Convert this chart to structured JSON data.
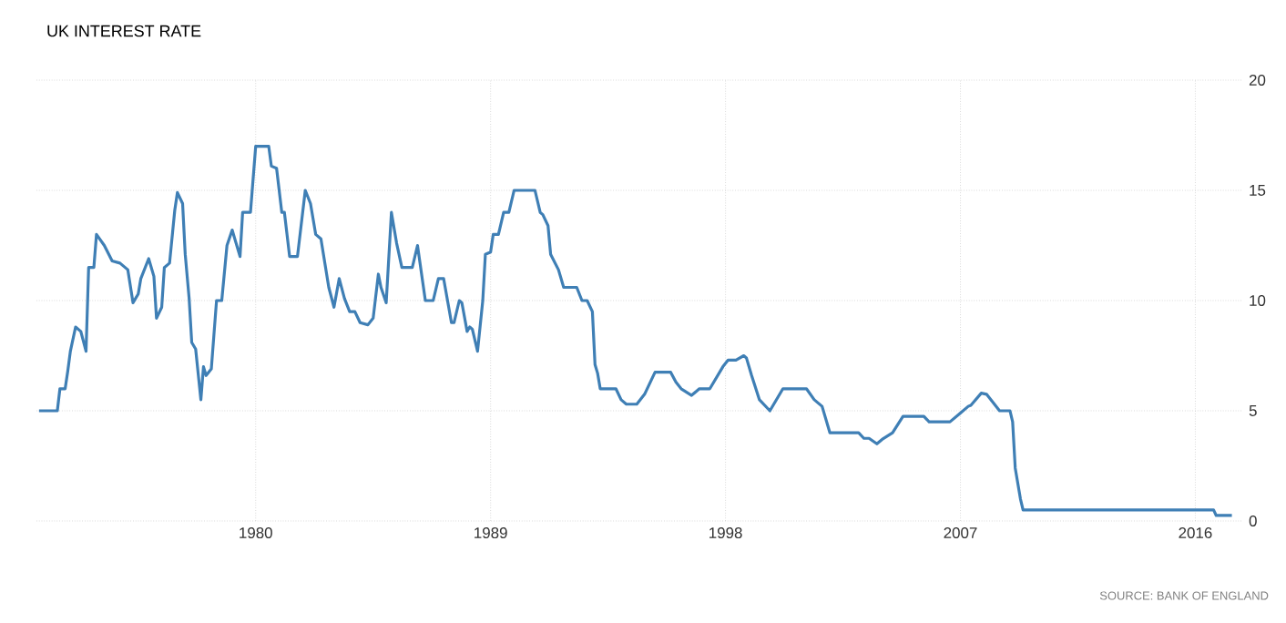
{
  "chart_data": {
    "type": "line",
    "title": "UK INTEREST RATE",
    "annotations": [
      "SOURCE: BANK OF ENGLAND"
    ],
    "x": [
      1971.7,
      1972.4,
      1972.5,
      1972.7,
      1972.8,
      1972.9,
      1973.1,
      1973.3,
      1973.5,
      1973.6,
      1973.8,
      1973.9,
      1974.2,
      1974.5,
      1974.8,
      1975.1,
      1975.3,
      1975.5,
      1975.6,
      1975.9,
      1976.1,
      1976.2,
      1976.4,
      1976.5,
      1976.7,
      1976.9,
      1977.0,
      1977.2,
      1977.3,
      1977.45,
      1977.55,
      1977.7,
      1977.9,
      1978.0,
      1978.1,
      1978.3,
      1978.5,
      1978.7,
      1978.9,
      1979.1,
      1979.4,
      1979.5,
      1979.8,
      1980.0,
      1980.5,
      1980.6,
      1980.8,
      1981.0,
      1981.1,
      1981.3,
      1981.6,
      1981.9,
      1982.1,
      1982.3,
      1982.5,
      1982.8,
      1983.0,
      1983.2,
      1983.4,
      1983.6,
      1983.8,
      1984.0,
      1984.3,
      1984.5,
      1984.7,
      1984.8,
      1985.0,
      1985.2,
      1985.4,
      1985.6,
      1986.0,
      1986.2,
      1986.5,
      1986.8,
      1987.0,
      1987.2,
      1987.5,
      1987.6,
      1987.8,
      1987.9,
      1988.1,
      1988.2,
      1988.3,
      1988.5,
      1988.7,
      1988.8,
      1989.0,
      1989.1,
      1989.3,
      1989.5,
      1989.7,
      1989.9,
      1990.7,
      1990.9,
      1991.0,
      1991.2,
      1991.3,
      1991.6,
      1991.8,
      1992.3,
      1992.5,
      1992.7,
      1992.9,
      1993.0,
      1993.1,
      1993.2,
      1993.8,
      1994.0,
      1994.2,
      1994.6,
      1994.9,
      1995.3,
      1995.9,
      1996.1,
      1996.3,
      1996.7,
      1997.0,
      1997.4,
      1997.9,
      1998.1,
      1998.4,
      1998.7,
      1998.8,
      1999.0,
      1999.3,
      1999.7,
      2000.2,
      2001.1,
      2001.4,
      2001.7,
      2002.0,
      2003.1,
      2003.3,
      2003.5,
      2003.8,
      2004.0,
      2004.4,
      2004.8,
      2005.6,
      2005.8,
      2006.6,
      2007.0,
      2007.3,
      2007.4,
      2007.8,
      2008.0,
      2008.5,
      2008.9,
      2009.0,
      2009.1,
      2009.3,
      2009.4,
      2016.7,
      2016.8,
      2017.4
    ],
    "values": [
      5.0,
      5.0,
      6.0,
      6.0,
      6.8,
      7.7,
      8.8,
      8.6,
      7.7,
      11.5,
      11.5,
      13.0,
      12.5,
      11.8,
      11.7,
      11.4,
      9.9,
      10.3,
      11.0,
      11.9,
      11.1,
      9.2,
      9.7,
      11.5,
      11.7,
      14.1,
      14.9,
      14.4,
      12.1,
      10.1,
      8.1,
      7.8,
      5.5,
      7.0,
      6.6,
      6.9,
      10.0,
      10.0,
      12.5,
      13.2,
      12.0,
      14.0,
      14.0,
      17.0,
      17.0,
      16.1,
      16.0,
      14.0,
      14.0,
      12.0,
      12.0,
      15.0,
      14.4,
      13.0,
      12.8,
      10.6,
      9.7,
      11.0,
      10.1,
      9.5,
      9.5,
      9.0,
      8.9,
      9.2,
      11.2,
      10.6,
      9.9,
      14.0,
      12.6,
      11.5,
      11.5,
      12.5,
      10.0,
      10.0,
      11.0,
      11.0,
      9.0,
      9.0,
      10.0,
      9.9,
      8.6,
      8.8,
      8.7,
      7.7,
      10.0,
      12.1,
      12.2,
      13.0,
      13.0,
      14.0,
      14.0,
      15.0,
      15.0,
      14.0,
      13.9,
      13.4,
      12.1,
      11.4,
      10.6,
      10.6,
      10.0,
      10.0,
      9.5,
      7.1,
      6.7,
      6.0,
      6.0,
      5.5,
      5.3,
      5.3,
      5.75,
      6.75,
      6.75,
      6.3,
      6.0,
      5.7,
      6.0,
      6.0,
      7.0,
      7.3,
      7.3,
      7.5,
      7.4,
      6.6,
      5.5,
      5.0,
      6.0,
      6.0,
      5.5,
      5.2,
      4.0,
      4.0,
      3.75,
      3.75,
      3.5,
      3.7,
      4.0,
      4.75,
      4.75,
      4.5,
      4.5,
      4.9,
      5.2,
      5.25,
      5.8,
      5.75,
      5.0,
      5.0,
      4.5,
      2.4,
      1.0,
      0.5,
      0.5,
      0.25,
      0.25
    ],
    "color": "#3f7fb5",
    "xlim": [
      1971.6,
      2017.8
    ],
    "ylim": [
      0,
      20
    ],
    "xticks": [
      1980,
      1989,
      1998,
      2007,
      2016
    ],
    "yticks": [
      0,
      5,
      10,
      15,
      20
    ],
    "grid": true
  }
}
